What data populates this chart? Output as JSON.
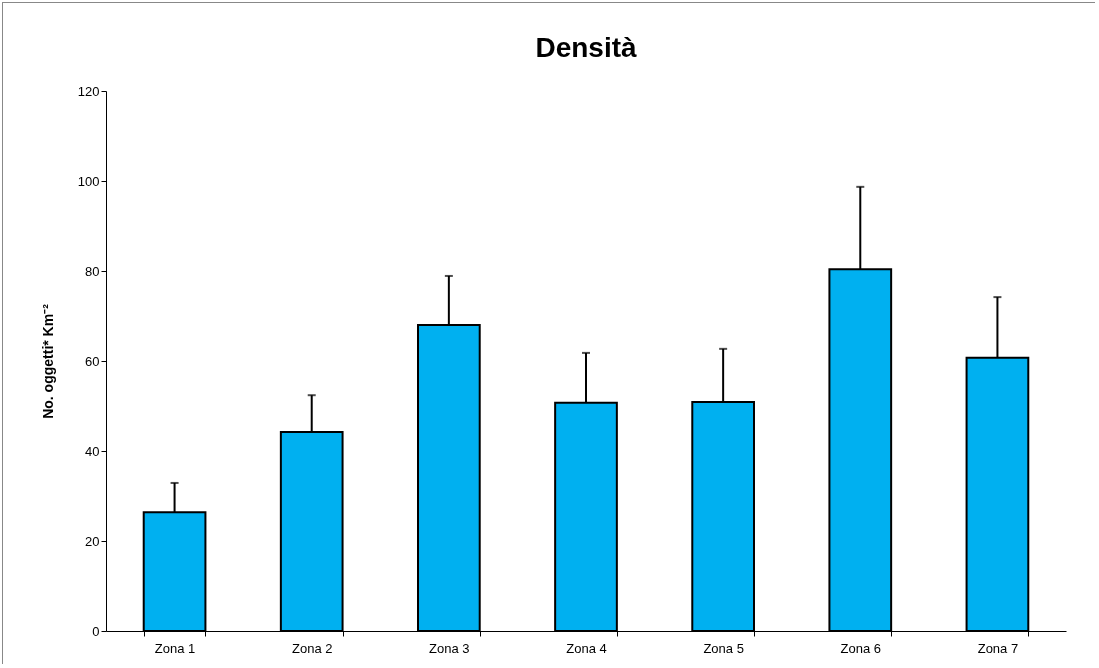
{
  "chart_data": {
    "type": "bar",
    "title": "Densità",
    "ylabel": "No. oggetti* Km⁻²",
    "categories": [
      "Zona 1",
      "Zona 2",
      "Zona 3",
      "Zona 4",
      "Zona 5",
      "Zona 6",
      "Zona 7"
    ],
    "values": [
      26.4,
      44.2,
      68,
      50.7,
      50.9,
      80.4,
      60.7
    ],
    "errors": [
      [
        26.4,
        32.9
      ],
      [
        44.2,
        52.4
      ],
      [
        68,
        78.9
      ],
      [
        50.7,
        61.8
      ],
      [
        50.9,
        62.7
      ],
      [
        80.4,
        98.7
      ],
      [
        60.7,
        74.2
      ]
    ],
    "color": "#00b0f0",
    "ylim": [
      0,
      120
    ],
    "yticks": [
      0,
      20,
      40,
      60,
      80,
      100,
      120
    ],
    "grid": false
  }
}
